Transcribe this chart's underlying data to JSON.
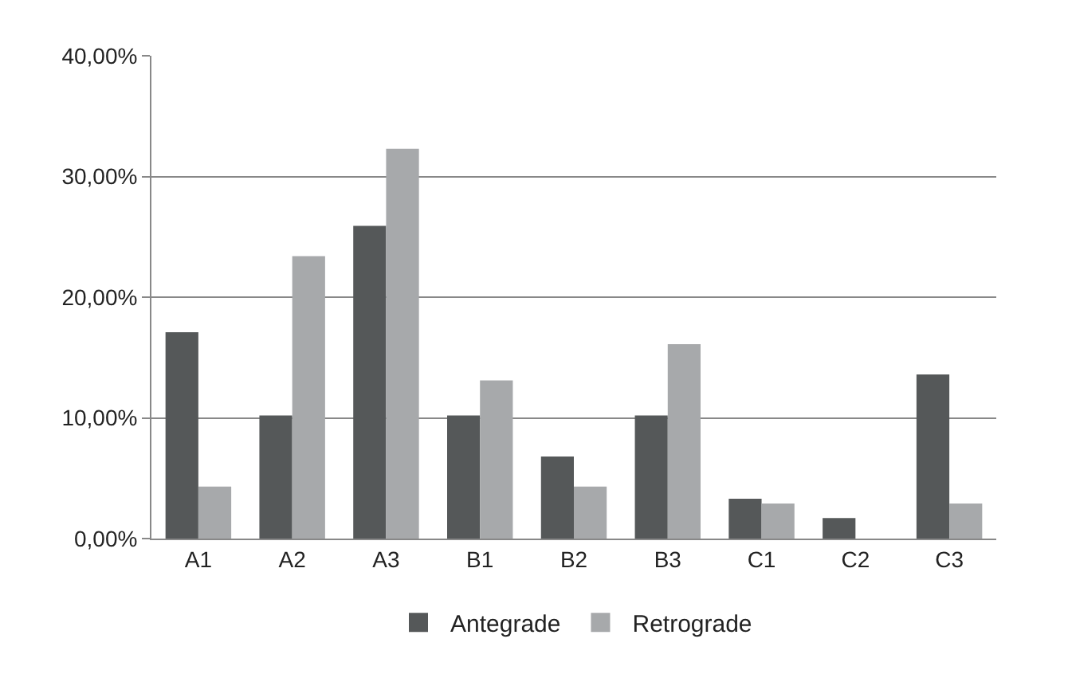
{
  "chart_data": {
    "type": "bar",
    "categories": [
      "A1",
      "A2",
      "A3",
      "B1",
      "B2",
      "B3",
      "C1",
      "C2",
      "C3"
    ],
    "series": [
      {
        "name": "Antegrade",
        "color": "#555859",
        "values": [
          17.1,
          10.2,
          25.9,
          10.2,
          6.8,
          10.2,
          3.3,
          1.7,
          13.6
        ]
      },
      {
        "name": "Retrograde",
        "color": "#a7a9ab",
        "values": [
          4.3,
          23.4,
          32.3,
          13.1,
          4.3,
          16.1,
          2.9,
          0,
          2.9
        ]
      }
    ],
    "ylim": [
      0,
      40
    ],
    "yticks": [
      {
        "value": 0,
        "label": "0,00%"
      },
      {
        "value": 10,
        "label": "10,00%"
      },
      {
        "value": 20,
        "label": "20,00%"
      },
      {
        "value": 30,
        "label": "30,00%"
      },
      {
        "value": 40,
        "label": "40,00%"
      }
    ],
    "grid": "y",
    "legend": "bottom"
  }
}
